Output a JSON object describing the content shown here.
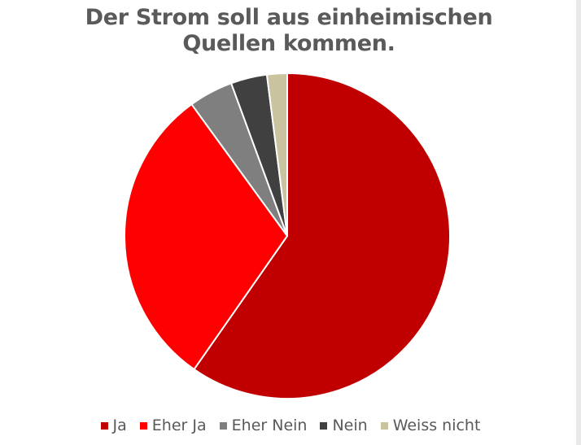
{
  "chart_data": {
    "type": "pie",
    "title_lines": [
      "Der Strom soll aus einheimischen",
      "Quellen kommen."
    ],
    "categories": [
      "Ja",
      "Eher Ja",
      "Eher Nein",
      "Nein",
      "Weiss nicht"
    ],
    "values": [
      59.7,
      30.3,
      4.4,
      3.6,
      2.0
    ],
    "colors": [
      "#c00000",
      "#ff0000",
      "#7f7f7f",
      "#404040",
      "#c9c3a0"
    ],
    "start": "12 o'clock",
    "direction": "clockwise",
    "legend_position": "bottom"
  }
}
